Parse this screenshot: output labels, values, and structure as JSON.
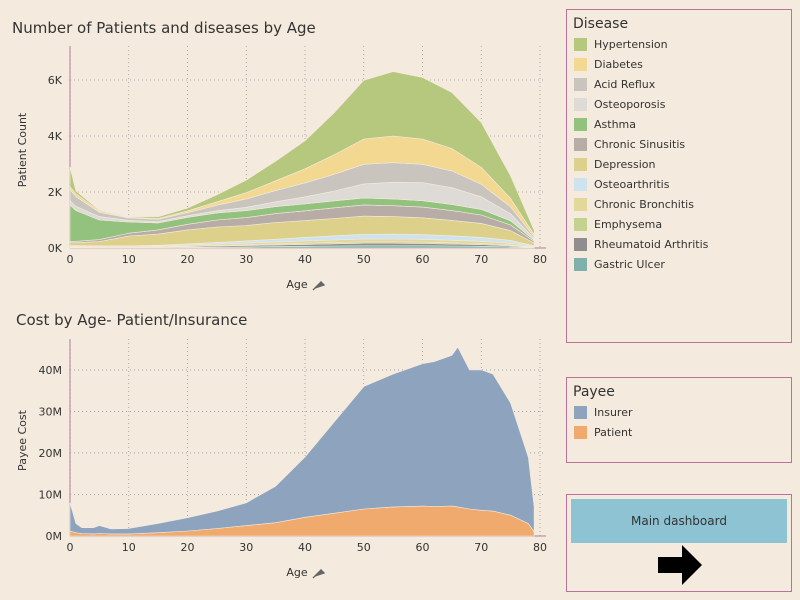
{
  "top_chart": {
    "title": "Number of Patients and diseases by Age",
    "xlabel": "Age",
    "ylabel": "Patient Count"
  },
  "bottom_chart": {
    "title": "Cost by Age- Patient/Insurance",
    "xlabel": "Age",
    "ylabel": "Payee Cost"
  },
  "disease_legend": {
    "title": "Disease",
    "items": [
      {
        "label": "Hypertension",
        "color": "#b6c77e"
      },
      {
        "label": "Diabetes",
        "color": "#f2d890"
      },
      {
        "label": "Acid Reflux",
        "color": "#c9c4bd"
      },
      {
        "label": "Osteoporosis",
        "color": "#dedad5"
      },
      {
        "label": "Asthma",
        "color": "#93c27f"
      },
      {
        "label": "Chronic Sinusitis",
        "color": "#b8aca7"
      },
      {
        "label": "Depression",
        "color": "#ddd08a"
      },
      {
        "label": "Osteoarthritis",
        "color": "#cfe3ee"
      },
      {
        "label": "Chronic Bronchitis",
        "color": "#e2d89a"
      },
      {
        "label": "Emphysema",
        "color": "#c3d28f"
      },
      {
        "label": "Rheumatoid Arthritis",
        "color": "#8f8d8d"
      },
      {
        "label": "Gastric Ulcer",
        "color": "#7fb0ab"
      }
    ]
  },
  "payee_legend": {
    "title": "Payee",
    "items": [
      {
        "label": "Insurer",
        "color": "#8ea3bd"
      },
      {
        "label": "Patient",
        "color": "#f0aa6e"
      }
    ]
  },
  "nav": {
    "main_dashboard_label": "Main dashboard"
  },
  "chart_data": [
    {
      "type": "area",
      "stacked": true,
      "title": "Number of Patients and diseases by Age",
      "xlabel": "Age",
      "ylabel": "Patient Count",
      "xlim": [
        0,
        80
      ],
      "ylim": [
        0,
        7000
      ],
      "x_ticks": [
        "0",
        "10",
        "20",
        "30",
        "40",
        "50",
        "60",
        "70",
        "80"
      ],
      "y_ticks": [
        "0K",
        "2K",
        "4K",
        "6K"
      ],
      "grid": "dotted",
      "x": [
        0,
        1,
        5,
        10,
        15,
        20,
        25,
        30,
        35,
        40,
        45,
        50,
        55,
        60,
        65,
        70,
        75,
        79
      ],
      "series": [
        {
          "name": "Gastric Ulcer",
          "color": "#7fb0ab",
          "values": [
            20,
            20,
            15,
            15,
            15,
            20,
            30,
            40,
            50,
            60,
            70,
            80,
            80,
            80,
            70,
            60,
            40,
            10
          ]
        },
        {
          "name": "Rheumatoid Arthritis",
          "color": "#8f8d8d",
          "values": [
            20,
            20,
            15,
            15,
            20,
            30,
            40,
            50,
            60,
            70,
            80,
            90,
            90,
            80,
            70,
            60,
            40,
            10
          ]
        },
        {
          "name": "Emphysema",
          "color": "#c3d28f",
          "values": [
            10,
            10,
            10,
            10,
            10,
            15,
            20,
            25,
            30,
            40,
            45,
            50,
            50,
            50,
            45,
            40,
            30,
            10
          ]
        },
        {
          "name": "Chronic Bronchitis",
          "color": "#e2d89a",
          "values": [
            30,
            30,
            30,
            30,
            30,
            40,
            50,
            60,
            70,
            80,
            90,
            100,
            100,
            100,
            90,
            80,
            60,
            20
          ]
        },
        {
          "name": "Osteoarthritis",
          "color": "#cfe3ee",
          "values": [
            10,
            10,
            10,
            10,
            20,
            40,
            60,
            80,
            100,
            130,
            150,
            170,
            180,
            170,
            160,
            140,
            100,
            30
          ]
        },
        {
          "name": "Depression",
          "color": "#ddd08a",
          "values": [
            100,
            100,
            150,
            350,
            400,
            500,
            550,
            550,
            600,
            600,
            620,
            650,
            620,
            600,
            550,
            500,
            350,
            100
          ]
        },
        {
          "name": "Chronic Sinusitis",
          "color": "#b8aca7",
          "values": [
            50,
            50,
            70,
            100,
            150,
            200,
            250,
            280,
            320,
            350,
            380,
            400,
            390,
            380,
            350,
            300,
            200,
            60
          ]
        },
        {
          "name": "Asthma",
          "color": "#93c27f",
          "values": [
            1300,
            1100,
            700,
            400,
            250,
            250,
            250,
            250,
            250,
            250,
            250,
            250,
            240,
            230,
            220,
            200,
            150,
            40
          ]
        },
        {
          "name": "Osteoporosis",
          "color": "#dedad5",
          "values": [
            150,
            150,
            120,
            60,
            50,
            60,
            80,
            120,
            170,
            250,
            350,
            500,
            600,
            650,
            600,
            450,
            250,
            60
          ]
        },
        {
          "name": "Acid Reflux",
          "color": "#c9c4bd",
          "values": [
            400,
            350,
            150,
            80,
            80,
            110,
            200,
            300,
            400,
            500,
            600,
            700,
            700,
            650,
            600,
            450,
            250,
            60
          ]
        },
        {
          "name": "Diabetes",
          "color": "#f2d890",
          "values": [
            100,
            100,
            50,
            20,
            30,
            60,
            120,
            220,
            350,
            500,
            700,
            900,
            950,
            900,
            800,
            600,
            300,
            80
          ]
        },
        {
          "name": "Hypertension",
          "color": "#b6c77e",
          "values": [
            700,
            100,
            30,
            20,
            60,
            100,
            250,
            450,
            700,
            1000,
            1500,
            2100,
            2300,
            2200,
            2000,
            1600,
            800,
            150
          ]
        }
      ]
    },
    {
      "type": "area",
      "stacked": true,
      "title": "Cost by Age- Patient/Insurance",
      "xlabel": "Age",
      "ylabel": "Payee Cost",
      "xlim": [
        0,
        80
      ],
      "ylim": [
        0,
        46000000
      ],
      "x_ticks": [
        "0",
        "10",
        "20",
        "30",
        "40",
        "50",
        "60",
        "70",
        "80"
      ],
      "y_ticks": [
        "0M",
        "10M",
        "20M",
        "30M",
        "40M"
      ],
      "grid": "dotted",
      "x": [
        0,
        1,
        2,
        4,
        5,
        7,
        10,
        15,
        20,
        25,
        30,
        35,
        40,
        45,
        50,
        55,
        60,
        62,
        65,
        66,
        68,
        70,
        72,
        75,
        78,
        79
      ],
      "series": [
        {
          "name": "Patient",
          "color": "#f0aa6e",
          "values": [
            1200000,
            800000,
            600000,
            500000,
            600000,
            500000,
            500000,
            800000,
            1200000,
            1800000,
            2500000,
            3200000,
            4500000,
            5500000,
            6500000,
            7000000,
            7200000,
            7100000,
            7200000,
            7000000,
            6500000,
            6200000,
            6000000,
            5000000,
            3000000,
            1000000
          ]
        },
        {
          "name": "Insurer",
          "color": "#8ea3bd",
          "values": [
            6800000,
            2200000,
            1400000,
            1500000,
            1900000,
            1200000,
            1300000,
            2200000,
            3200000,
            4200000,
            5500000,
            8800000,
            14500000,
            22000000,
            29500000,
            32000000,
            34300000,
            34900000,
            36300000,
            38500000,
            33500000,
            33800000,
            33000000,
            27000000,
            16000000,
            6000000
          ]
        }
      ]
    }
  ]
}
